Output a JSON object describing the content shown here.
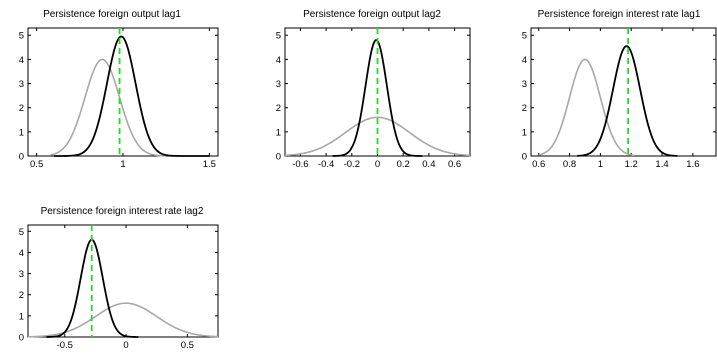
{
  "chart_data": [
    {
      "type": "line",
      "title": "Persistence foreign output lag1",
      "xlabel": "",
      "ylabel": "",
      "xlim": [
        0.45,
        1.55
      ],
      "ylim": [
        0,
        5.3
      ],
      "xticks": [
        0.5,
        1,
        1.5
      ],
      "xtick_labels": [
        "0.5",
        "1",
        "1.5"
      ],
      "yticks": [
        0,
        1,
        2,
        3,
        4,
        5
      ],
      "ytick_labels": [
        "0",
        "1",
        "2",
        "3",
        "4",
        "5"
      ],
      "vline": 0.98,
      "series": [
        {
          "role": "prior",
          "color": "#a8a8a8",
          "dist": {
            "mu": 0.88,
            "sigma": 0.1,
            "peak": 4.0,
            "xmin": 0.58,
            "xmax": 1.25
          }
        },
        {
          "role": "posterior",
          "color": "#000000",
          "dist": {
            "mu": 0.99,
            "sigma": 0.083,
            "peak": 4.95,
            "xmin": 0.6,
            "xmax": 1.5
          }
        }
      ],
      "vline_color": "#22dd22"
    },
    {
      "type": "line",
      "title": "Persistence foreign output lag2",
      "xlabel": "",
      "ylabel": "",
      "xlim": [
        -0.72,
        0.72
      ],
      "ylim": [
        0,
        5.3
      ],
      "xticks": [
        -0.6,
        -0.4,
        -0.2,
        0,
        0.2,
        0.4,
        0.6
      ],
      "xtick_labels": [
        "-0.6",
        "-0.4",
        "-0.2",
        "0",
        "0.2",
        "0.4",
        "0.6"
      ],
      "yticks": [
        0,
        1,
        2,
        3,
        4,
        5
      ],
      "ytick_labels": [
        "0",
        "1",
        "2",
        "3",
        "4",
        "5"
      ],
      "vline": 0.0,
      "series": [
        {
          "role": "prior",
          "color": "#a8a8a8",
          "dist": {
            "mu": 0.0,
            "sigma": 0.25,
            "peak": 1.6,
            "xmin": -0.72,
            "xmax": 0.72
          }
        },
        {
          "role": "posterior",
          "color": "#000000",
          "dist": {
            "mu": -0.01,
            "sigma": 0.083,
            "peak": 4.8,
            "xmin": -0.35,
            "xmax": 0.35
          }
        }
      ],
      "vline_color": "#22dd22"
    },
    {
      "type": "line",
      "title": "Persistence foreign interest rate lag1",
      "xlabel": "",
      "ylabel": "",
      "xlim": [
        0.55,
        1.75
      ],
      "ylim": [
        0,
        5.3
      ],
      "xticks": [
        0.6,
        0.8,
        1,
        1.2,
        1.4,
        1.6
      ],
      "xtick_labels": [
        "0.6",
        "0.8",
        "1",
        "1.2",
        "1.4",
        "1.6"
      ],
      "yticks": [
        0,
        1,
        2,
        3,
        4,
        5
      ],
      "ytick_labels": [
        "0",
        "1",
        "2",
        "3",
        "4",
        "5"
      ],
      "vline": 1.18,
      "series": [
        {
          "role": "prior",
          "color": "#a8a8a8",
          "dist": {
            "mu": 0.9,
            "sigma": 0.1,
            "peak": 4.0,
            "xmin": 0.6,
            "xmax": 1.22
          }
        },
        {
          "role": "posterior",
          "color": "#000000",
          "dist": {
            "mu": 1.17,
            "sigma": 0.088,
            "peak": 4.55,
            "xmin": 0.85,
            "xmax": 1.5
          }
        }
      ],
      "vline_color": "#22dd22"
    },
    {
      "type": "line",
      "title": "Persistence foreign interest rate lag2",
      "xlabel": "",
      "ylabel": "",
      "xlim": [
        -0.8,
        0.75
      ],
      "ylim": [
        0,
        5.3
      ],
      "xticks": [
        -0.5,
        0,
        0.5
      ],
      "xtick_labels": [
        "-0.5",
        "0",
        "0.5"
      ],
      "yticks": [
        0,
        1,
        2,
        3,
        4,
        5
      ],
      "ytick_labels": [
        "0",
        "1",
        "2",
        "3",
        "4",
        "5"
      ],
      "vline": -0.28,
      "series": [
        {
          "role": "prior",
          "color": "#a8a8a8",
          "dist": {
            "mu": 0.0,
            "sigma": 0.25,
            "peak": 1.6,
            "xmin": -0.8,
            "xmax": 0.75
          }
        },
        {
          "role": "posterior",
          "color": "#000000",
          "dist": {
            "mu": -0.28,
            "sigma": 0.09,
            "peak": 4.6,
            "xmin": -0.65,
            "xmax": 0.1
          }
        }
      ],
      "vline_color": "#22dd22"
    }
  ]
}
